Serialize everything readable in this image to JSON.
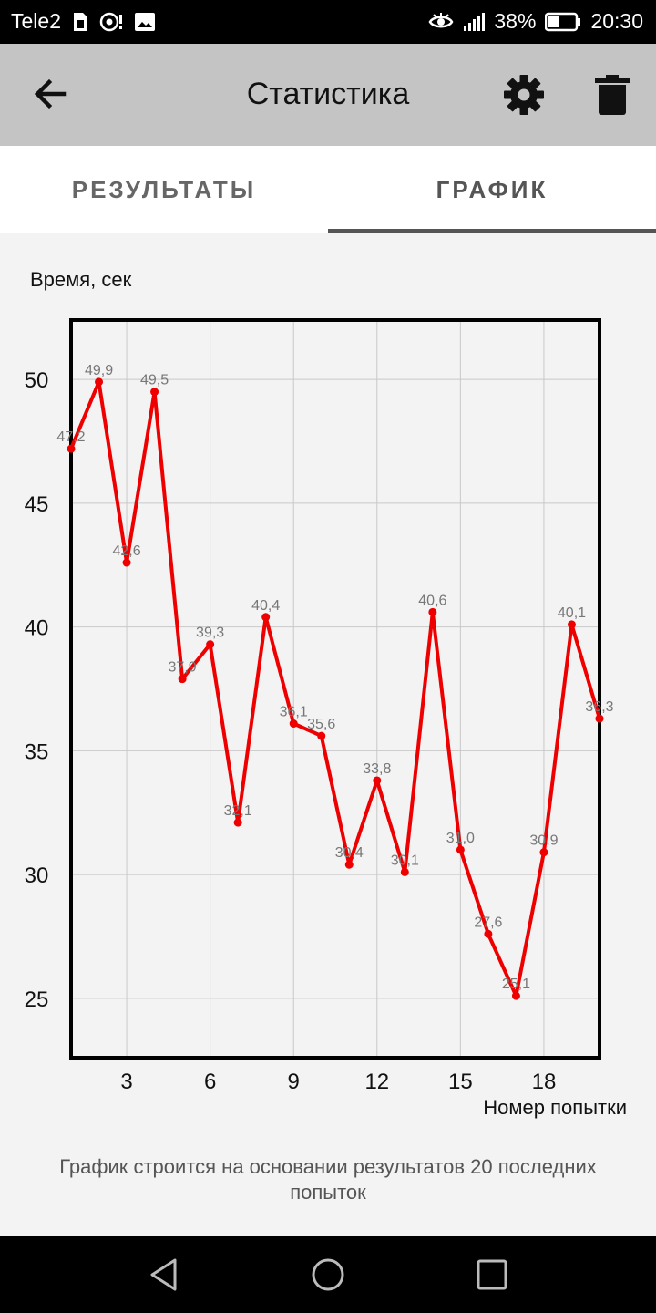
{
  "status_bar": {
    "carrier": "Tele2",
    "battery": "38%",
    "time": "20:30",
    "icons": [
      "sim-icon",
      "hotspot-icon",
      "image-icon",
      "eye-icon",
      "signal-icon",
      "battery-icon"
    ]
  },
  "app_bar": {
    "title": "Статистика",
    "back_icon": "arrow-left-icon",
    "settings_icon": "gear-icon",
    "delete_icon": "trash-icon",
    "background": "#c4c4c4"
  },
  "tabs": [
    {
      "label": "РЕЗУЛЬТАТЫ",
      "selected": false
    },
    {
      "label": "ГРАФИК",
      "selected": true
    }
  ],
  "chart_data": {
    "type": "line",
    "ylabel": "Время, сек",
    "xlabel": "Номер попытки",
    "x": [
      1,
      2,
      3,
      4,
      5,
      6,
      7,
      8,
      9,
      10,
      11,
      12,
      13,
      14,
      15,
      16,
      17,
      18,
      19,
      20
    ],
    "series": [
      {
        "color": "#ee0000",
        "values": [
          47.2,
          49.9,
          42.6,
          49.5,
          37.9,
          39.3,
          32.1,
          40.4,
          36.1,
          35.6,
          30.4,
          33.8,
          30.1,
          40.6,
          31.0,
          27.6,
          25.1,
          30.9,
          40.1,
          36.3
        ],
        "labels": [
          "47,2",
          "49,9",
          "42,6",
          "49,5",
          "37,9",
          "39,3",
          "32,1",
          "40,4",
          "36,1",
          "35,6",
          "30,4",
          "33,8",
          "30,1",
          "40,6",
          "31,0",
          "27,6",
          "25,1",
          "30,9",
          "40,1",
          "36,3"
        ]
      }
    ],
    "xlim": [
      1,
      20
    ],
    "ylim": [
      22.6,
      52.4
    ],
    "xticks": [
      3,
      6,
      9,
      12,
      15,
      18
    ],
    "yticks": [
      25,
      30,
      35,
      40,
      45,
      50
    ],
    "grid": true
  },
  "footer_note": "График строится на основании результатов 20 последних попыток",
  "nav_bar": {
    "back_icon": "triangle-back-icon",
    "home_icon": "circle-home-icon",
    "recents_icon": "square-recents-icon"
  }
}
